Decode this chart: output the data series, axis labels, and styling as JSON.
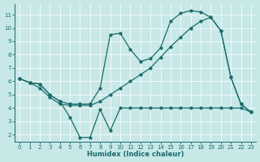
{
  "xlabel": "Humidex (Indice chaleur)",
  "bg_color": "#c8e8e8",
  "line_color": "#1a6b6b",
  "xlim": [
    -0.5,
    23.5
  ],
  "ylim": [
    1.5,
    11.8
  ],
  "xticks": [
    0,
    1,
    2,
    3,
    4,
    5,
    6,
    7,
    8,
    9,
    10,
    11,
    12,
    13,
    14,
    15,
    16,
    17,
    18,
    19,
    20,
    21,
    22,
    23
  ],
  "yticks": [
    2,
    3,
    4,
    5,
    6,
    7,
    8,
    9,
    10,
    11
  ],
  "line1": {
    "x": [
      0,
      1,
      2,
      3,
      4,
      5,
      6,
      7,
      8,
      9,
      10,
      11,
      12,
      13,
      14,
      15,
      16,
      17,
      18,
      19,
      20,
      21,
      22,
      23
    ],
    "y": [
      6.2,
      5.9,
      5.8,
      5.0,
      4.5,
      4.3,
      4.3,
      4.3,
      5.5,
      9.5,
      9.6,
      8.4,
      7.5,
      7.7,
      8.5,
      10.5,
      11.1,
      11.3,
      11.2,
      10.8,
      9.8,
      6.3,
      4.3,
      3.7
    ]
  },
  "line2": {
    "x": [
      0,
      1,
      2,
      3,
      4,
      5,
      6,
      7,
      8,
      9,
      10,
      11,
      12,
      13,
      14,
      15,
      16,
      17,
      18,
      19,
      20,
      21,
      22,
      23
    ],
    "y": [
      6.2,
      5.9,
      5.5,
      4.8,
      4.3,
      4.2,
      4.2,
      4.2,
      4.5,
      5.0,
      5.5,
      6.0,
      6.5,
      7.0,
      7.8,
      8.6,
      9.3,
      10.0,
      10.5,
      10.8,
      9.8,
      6.3,
      4.3,
      3.7
    ]
  },
  "line3": {
    "x": [
      0,
      1,
      2,
      3,
      4,
      5,
      6,
      7,
      8,
      9,
      10,
      11,
      12,
      13,
      14,
      15,
      16,
      17,
      18,
      19,
      20,
      21,
      22,
      23
    ],
    "y": [
      6.2,
      5.9,
      5.8,
      5.0,
      4.5,
      3.3,
      1.8,
      1.8,
      3.9,
      2.3,
      4.0,
      4.0,
      4.0,
      4.0,
      4.0,
      4.0,
      4.0,
      4.0,
      4.0,
      4.0,
      4.0,
      4.0,
      4.0,
      3.7
    ]
  }
}
